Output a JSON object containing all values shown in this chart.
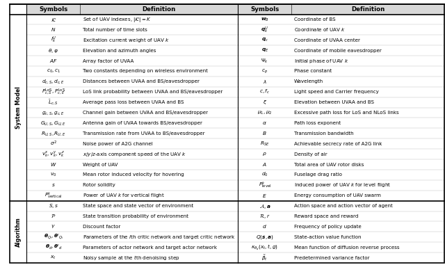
{
  "system_model_rows": [
    [
      "$\\mathcal{K}$",
      "Set of UAV indexes, $|\\mathcal{K}| = K$",
      "$\\boldsymbol{w}_B$",
      "Coordinate of BS"
    ],
    [
      "$N$",
      "Total number of time slots",
      "$\\boldsymbol{q}_k^U$",
      "Coordinate of UAV $k$"
    ],
    [
      "$I_k^U$",
      "Excitation current weight of UAV $k$",
      "$\\boldsymbol{q}_c$",
      "Coordinate of UVAA center"
    ],
    [
      "$\\theta, \\varphi$",
      "Elevation and azimuth angles",
      "$\\boldsymbol{q}_E$",
      "Coordinate of mobile eavesdropper"
    ],
    [
      "$AF$",
      "Array factor of UVAA",
      "$\\Psi_k$",
      "Initial phase of UAV $k$"
    ],
    [
      "$c_0, c_1$",
      "Two constants depending on wireless environment",
      "$c_p$",
      "Phase constant"
    ],
    [
      "$d_{c,S}, d_{c,E}$",
      "Distances between UVAA and BS/eavesdropper",
      "$\\lambda$",
      "Wavelength"
    ],
    [
      "$P_{c,S}^{\\mathrm{LoS}}, P_{c,E}^{\\mathrm{LoS}}$",
      "LoS link probability between UVAA and BS/eavesdropper",
      "$c, f_c$",
      "Light speed and Carrier frequency"
    ],
    [
      "$\\bar{L}_{c,S}$",
      "Average pass loss between UVAA and BS",
      "$\\xi$",
      "Elevation between UVAA and BS"
    ],
    [
      "$g_{c,S}, g_{c,E}$",
      "Channel gain between UVAA and BS/eavesdropper",
      "$\\mu_1, \\mu_2$",
      "Excessive path loss for LoS and NLoS links"
    ],
    [
      "$G_{U,S}, G_{U,E}$",
      "Antenna gain of UVAA towards BS/eavesdropper",
      "$\\alpha$",
      "Path loss exponent"
    ],
    [
      "$R_{U,S}, R_{U,E}$",
      "Transmission rate from UVAA to BS/eavesdropper",
      "$B$",
      "Transmission bandwidth"
    ],
    [
      "$\\sigma^2$",
      "Noise power of A2G channel",
      "$R_{SE}$",
      "Achievable secrecy rate of A2G link"
    ],
    [
      "$v_k^x, v_k^y, v_k^z$",
      "$x$/$y$/$z$-axis component speed of the UAV $k$",
      "$\\rho$",
      "Density of air"
    ],
    [
      "$W$",
      "Weight of UAV",
      "$A$",
      "Total area of UAV rotor disks"
    ],
    [
      "$v_0$",
      "Mean rotor induced velocity for hovering",
      "$d_0$",
      "Fuselage drag ratio"
    ],
    [
      "$s$",
      "Rotor solidity",
      "$P_{\\mathrm{level}}^k$",
      "Induced power of UAV $k$ for level flight"
    ],
    [
      "$P_{\\mathrm{vertical}}^k$",
      "Power of UAV $k$ for vertical flight",
      "$E$",
      "Energy consumption of UAV swarm"
    ]
  ],
  "algorithm_rows": [
    [
      "$S, s$",
      "State space and state vector of environment",
      "$\\mathcal{A}, \\boldsymbol{a}$",
      "Action space and action vector of agent"
    ],
    [
      "$\\mathcal{P}$",
      "State transition probability of environment",
      "$\\mathcal{R}, r$",
      "Reward space and reward"
    ],
    [
      "$\\gamma$",
      "Discount factor",
      "$d$",
      "Frequency of policy update"
    ],
    [
      "$\\boldsymbol{\\theta}_{Q_i}, \\boldsymbol{\\theta}'_{Q_i}$",
      "Parameters of the $i$th critic network and target critic network",
      "$Q(\\boldsymbol{s}, \\boldsymbol{a})$",
      "State-action value function"
    ],
    [
      "$\\boldsymbol{\\theta}_d, \\boldsymbol{\\theta}'_d$",
      "Parameters of actor network and target actor network",
      "$\\kappa_{\\theta_d}(x_t, t, g)$",
      "Mean function of diffusion reverse process"
    ],
    [
      "$x_t$",
      "Noisy sample at the $t$th denoising step",
      "$\\tilde{\\beta}_t$",
      "Predetermined variance factor"
    ]
  ],
  "bg_color": "#ffffff",
  "header_bg": "#d8d8d8",
  "row_bg": "#ffffff",
  "border_color": "#000000",
  "thin_line_color": "#888888",
  "thick_line_color": "#000000"
}
